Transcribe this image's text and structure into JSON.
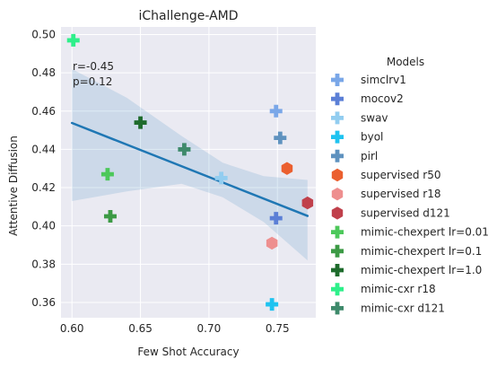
{
  "chart_data": {
    "type": "scatter",
    "title": "iChallenge-AMD",
    "xlabel": "Few Shot Accuracy",
    "ylabel": "Attentive Diffusion",
    "xlim": [
      0.592,
      0.778
    ],
    "ylim": [
      0.352,
      0.504
    ],
    "xticks": [
      0.6,
      0.65,
      0.7,
      0.75
    ],
    "xtick_labels": [
      "0.60",
      "0.65",
      "0.70",
      "0.75"
    ],
    "yticks": [
      0.36,
      0.38,
      0.4,
      0.42,
      0.44,
      0.46,
      0.48,
      0.5
    ],
    "ytick_labels": [
      "0.36",
      "0.38",
      "0.40",
      "0.42",
      "0.44",
      "0.46",
      "0.48",
      "0.50"
    ],
    "grid": true,
    "background": "#eaeaf2",
    "legend": {
      "title": "Models",
      "placement": "outside-right"
    },
    "annotation": {
      "line1": "r=-0.45",
      "line2": "p=0.12"
    },
    "regression": {
      "x": [
        0.6,
        0.772
      ],
      "y": [
        0.4538,
        0.4052
      ],
      "color": "#1f77b4",
      "ci_upper": [
        [
          0.6,
          0.482
        ],
        [
          0.64,
          0.467
        ],
        [
          0.68,
          0.447
        ],
        [
          0.71,
          0.433
        ],
        [
          0.74,
          0.426
        ],
        [
          0.772,
          0.424
        ]
      ],
      "ci_lower": [
        [
          0.6,
          0.413
        ],
        [
          0.64,
          0.418
        ],
        [
          0.68,
          0.422
        ],
        [
          0.71,
          0.415
        ],
        [
          0.74,
          0.402
        ],
        [
          0.772,
          0.382
        ]
      ]
    },
    "series": [
      {
        "name": "simclrv1",
        "marker": "plus",
        "color": "#7aa7e8",
        "x": [
          0.749
        ],
        "y": [
          0.46
        ]
      },
      {
        "name": "mocov2",
        "marker": "plus",
        "color": "#5b7fd6",
        "x": [
          0.749
        ],
        "y": [
          0.404
        ]
      },
      {
        "name": "swav",
        "marker": "plus",
        "color": "#92cdf0",
        "x": [
          0.709
        ],
        "y": [
          0.425
        ]
      },
      {
        "name": "byol",
        "marker": "plus",
        "color": "#1fc3f0",
        "x": [
          0.746
        ],
        "y": [
          0.359
        ]
      },
      {
        "name": "pirl",
        "marker": "plus",
        "color": "#5f92bf",
        "x": [
          0.752
        ],
        "y": [
          0.446
        ]
      },
      {
        "name": "supervised r50",
        "marker": "hexagon",
        "color": "#eb5f2f",
        "x": [
          0.757
        ],
        "y": [
          0.43
        ]
      },
      {
        "name": "supervised r18",
        "marker": "hexagon",
        "color": "#ee8f8f",
        "x": [
          0.746
        ],
        "y": [
          0.391
        ]
      },
      {
        "name": "supervised d121",
        "marker": "hexagon",
        "color": "#c0404b",
        "x": [
          0.772
        ],
        "y": [
          0.412
        ]
      },
      {
        "name": "mimic-chexpert lr=0.01",
        "marker": "plus",
        "color": "#4cc85a",
        "x": [
          0.626
        ],
        "y": [
          0.427
        ]
      },
      {
        "name": "mimic-chexpert lr=0.1",
        "marker": "plus",
        "color": "#3c9a45",
        "x": [
          0.628
        ],
        "y": [
          0.405
        ]
      },
      {
        "name": "mimic-chexpert lr=1.0",
        "marker": "plus",
        "color": "#1e6b2c",
        "x": [
          0.65
        ],
        "y": [
          0.454
        ]
      },
      {
        "name": "mimic-cxr r18",
        "marker": "plus",
        "color": "#2ef08a",
        "x": [
          0.601
        ],
        "y": [
          0.497
        ]
      },
      {
        "name": "mimic-cxr d121",
        "marker": "plus",
        "color": "#3e8a6b",
        "x": [
          0.682
        ],
        "y": [
          0.44
        ]
      }
    ]
  }
}
